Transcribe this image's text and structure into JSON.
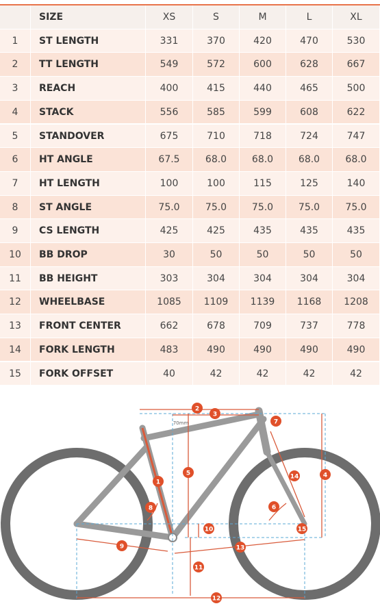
{
  "table": {
    "header": [
      "SIZE",
      "XS",
      "S",
      "M",
      "L",
      "XL"
    ],
    "rows": [
      [
        "1",
        "ST LENGTH",
        "331",
        "370",
        "420",
        "470",
        "530"
      ],
      [
        "2",
        "TT LENGTH",
        "549",
        "572",
        "600",
        "628",
        "667"
      ],
      [
        "3",
        "REACH",
        "400",
        "415",
        "440",
        "465",
        "500"
      ],
      [
        "4",
        "STACK",
        "556",
        "585",
        "599",
        "608",
        "622"
      ],
      [
        "5",
        "STANDOVER",
        "675",
        "710",
        "718",
        "724",
        "747"
      ],
      [
        "6",
        "HT ANGLE",
        "67.5",
        "68.0",
        "68.0",
        "68.0",
        "68.0"
      ],
      [
        "7",
        "HT LENGTH",
        "100",
        "100",
        "115",
        "125",
        "140"
      ],
      [
        "8",
        "ST ANGLE",
        "75.0",
        "75.0",
        "75.0",
        "75.0",
        "75.0"
      ],
      [
        "9",
        "CS LENGTH",
        "425",
        "425",
        "435",
        "435",
        "435"
      ],
      [
        "10",
        "BB DROP",
        "30",
        "50",
        "50",
        "50",
        "50"
      ],
      [
        "11",
        "BB HEIGHT",
        "303",
        "304",
        "304",
        "304",
        "304"
      ],
      [
        "12",
        "WHEELBASE",
        "1085",
        "1109",
        "1139",
        "1168",
        "1208"
      ],
      [
        "13",
        "FRONT CENTER",
        "662",
        "678",
        "709",
        "737",
        "778"
      ],
      [
        "14",
        "FORK LENGTH",
        "483",
        "490",
        "490",
        "490",
        "490"
      ],
      [
        "15",
        "FORK OFFSET",
        "40",
        "42",
        "42",
        "42",
        "42"
      ]
    ]
  },
  "diagram": {
    "dimension_note": "70mm",
    "markers": [
      "1",
      "2",
      "3",
      "4",
      "5",
      "6",
      "7",
      "8",
      "9",
      "10",
      "11",
      "12",
      "13",
      "14",
      "15"
    ]
  }
}
